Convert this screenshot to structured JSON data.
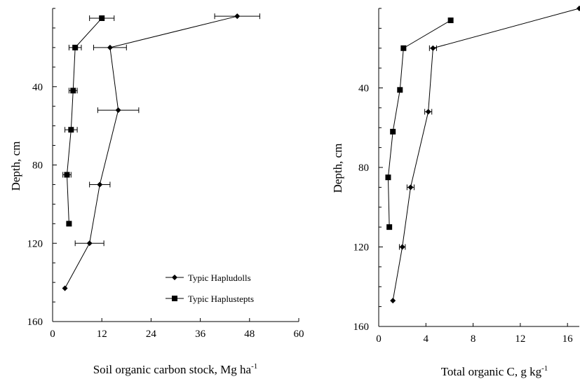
{
  "chart_data": [
    {
      "type": "line",
      "xlabel": "Soil organic carbon stock, Mg ha",
      "xlabel_sup": "-1",
      "ylabel": "Depth, cm",
      "xlim": [
        0,
        60
      ],
      "ylim": [
        0,
        160
      ],
      "y_inverted": true,
      "x_axis_position": "bottom",
      "xticks": [
        0,
        12,
        24,
        36,
        48,
        60
      ],
      "yticks": [
        40,
        80,
        120,
        160
      ],
      "grid": false,
      "legend_position": "lower-right",
      "series": [
        {
          "name": "Typic Hapludolls",
          "marker": "diamond",
          "x": [
            45,
            14,
            16,
            11.5,
            9,
            3
          ],
          "y": [
            4,
            20,
            52,
            90,
            120,
            143
          ],
          "xerr": [
            5.5,
            4,
            5,
            2.5,
            3.5,
            0
          ]
        },
        {
          "name": "Typic Haplustepts",
          "marker": "square",
          "x": [
            12,
            5.5,
            5,
            4.5,
            3.5,
            4
          ],
          "y": [
            5,
            20,
            42,
            62,
            85,
            110
          ],
          "xerr": [
            3,
            1.5,
            1,
            1.5,
            1,
            0
          ]
        }
      ]
    },
    {
      "type": "line",
      "xlabel": "Total organic C, g kg",
      "xlabel_sup": "-1",
      "ylabel": "Depth, cm",
      "xlim": [
        0,
        17
      ],
      "ylim": [
        0,
        160
      ],
      "y_inverted": true,
      "xticks": [
        0,
        4,
        8,
        12,
        16
      ],
      "yticks": [
        40,
        80,
        120,
        160
      ],
      "grid": false,
      "series": [
        {
          "name": "Typic Hapludolls",
          "marker": "diamond",
          "x": [
            17,
            4.6,
            4.2,
            2.7,
            2.0,
            1.2
          ],
          "y": [
            0,
            20,
            52,
            90,
            120,
            147
          ],
          "xerr": [
            0,
            0.3,
            0.3,
            0.3,
            0.25,
            0
          ]
        },
        {
          "name": "Typic Haplustepts",
          "marker": "square",
          "x": [
            6.1,
            2.1,
            1.8,
            1.2,
            0.8,
            0.9
          ],
          "y": [
            6,
            20,
            41,
            62,
            85,
            110
          ],
          "xerr": [
            0,
            0,
            0,
            0,
            0,
            0
          ]
        }
      ]
    }
  ]
}
